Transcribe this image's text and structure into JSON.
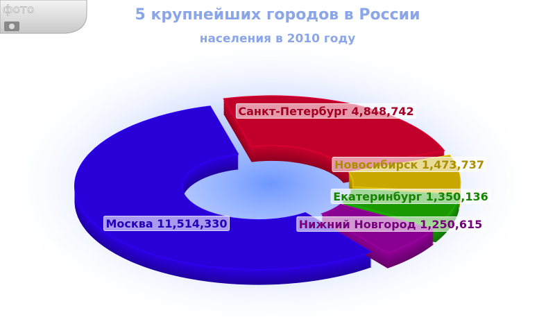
{
  "photo_button": {
    "label": "фото"
  },
  "chart_data": {
    "type": "donut3d",
    "title": "5 крупнейших городов в России",
    "subtitle": "населения в 2010 году",
    "categories": [
      "Москва",
      "Санкт-Петербург",
      "Новосибирск",
      "Екатеринбург",
      "Нижний Новгород"
    ],
    "values": [
      11514330,
      4848742,
      1473737,
      1350136,
      1250615
    ],
    "value_labels": [
      "11,514,330",
      "4,848,742",
      "1,473,737",
      "1,350,136",
      "1,250,615"
    ],
    "colors": [
      "#2a00d8",
      "#c0002a",
      "#c8a800",
      "#1a9a00",
      "#8a0090"
    ]
  }
}
